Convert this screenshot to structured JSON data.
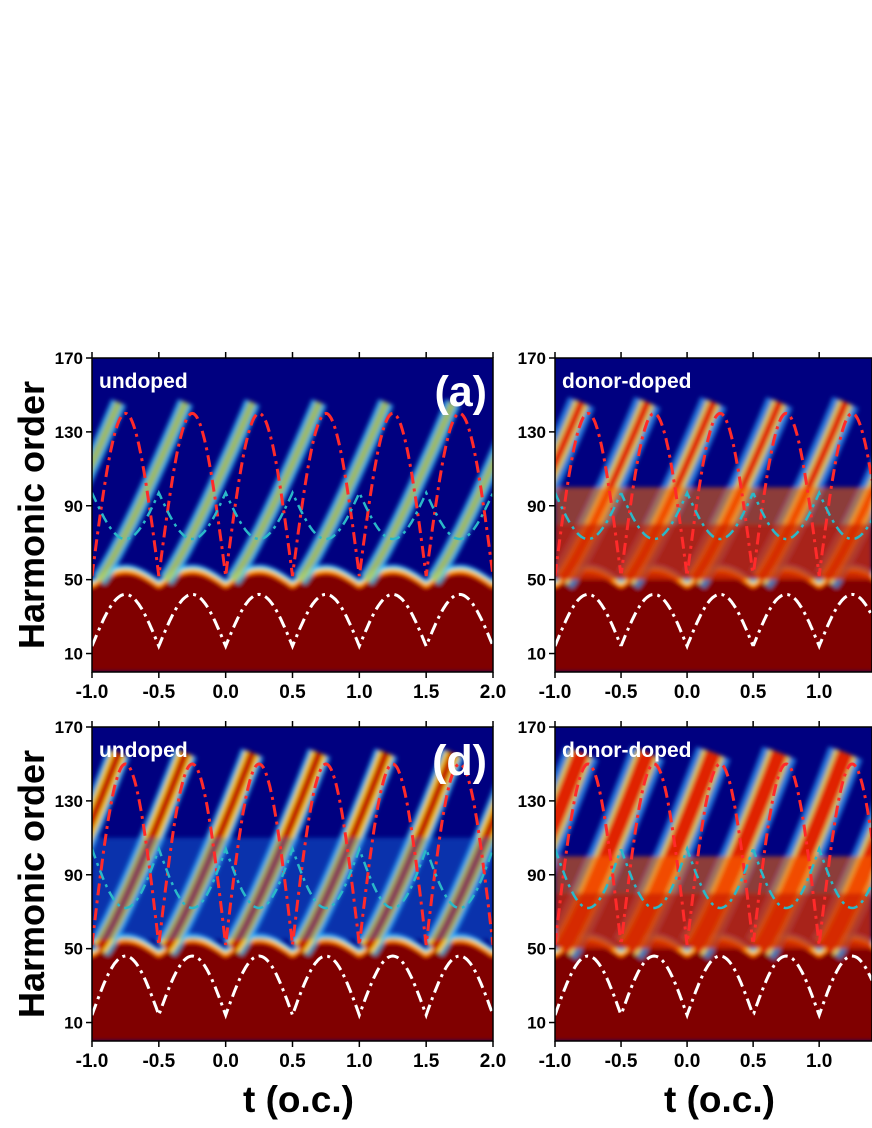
{
  "figure": {
    "ylabel": "Harmonic order",
    "xlabel": "t (o.c.)"
  },
  "colors": {
    "background_low": "#000080",
    "high": "#800000",
    "cutoff_curve": "#ff2a2a",
    "mid_curve": "#2ab8c8",
    "orange_curve": "#f0a020",
    "low_curve": "#ffffff"
  },
  "chart_data": [
    {
      "type": "heatmap",
      "panel_tag": "(a)",
      "inset_label": "undoped",
      "ylabel": "Harmonic order",
      "xlabel": "",
      "xlim": [
        -1.0,
        2.0
      ],
      "ylim": [
        0,
        170
      ],
      "xticks": [
        "-1.0",
        "-0.5",
        "0.0",
        "0.5",
        "1.0",
        "1.5",
        "2.0"
      ],
      "yticks": [
        "10",
        "50",
        "90",
        "130",
        "170"
      ],
      "cutoff_max": 140,
      "mid_curve_max": 97,
      "low_curve_max": 42,
      "colormap": "jet"
    },
    {
      "type": "heatmap",
      "panel_tag": "",
      "inset_label": "donor-doped",
      "ylabel": "",
      "xlabel": "",
      "xlim": [
        -1.0,
        1.4
      ],
      "ylim": [
        0,
        170
      ],
      "xticks": [
        "-1.0",
        "-0.5",
        "0.0",
        "0.5",
        "1.0"
      ],
      "yticks": [
        "10",
        "50",
        "90",
        "130",
        "170"
      ],
      "cutoff_max": 140,
      "mid_curve_max": 97,
      "low_curve_max": 42,
      "colormap": "jet"
    },
    {
      "type": "heatmap",
      "panel_tag": "(d)",
      "inset_label": "undoped",
      "ylabel": "Harmonic order",
      "xlabel": "t (o.c.)",
      "xlim": [
        -1.0,
        2.0
      ],
      "ylim": [
        0,
        170
      ],
      "xticks": [
        "-1.0",
        "-0.5",
        "0.0",
        "0.5",
        "1.0",
        "1.5",
        "2.0"
      ],
      "yticks": [
        "10",
        "50",
        "90",
        "130",
        "170"
      ],
      "cutoff_max": 150,
      "mid_curve_max": 104,
      "low_curve_max": 46,
      "colormap": "jet"
    },
    {
      "type": "heatmap",
      "panel_tag": "",
      "inset_label": "donor-doped",
      "ylabel": "",
      "xlabel": "t (o.c.)",
      "xlim": [
        -1.0,
        1.4
      ],
      "ylim": [
        0,
        170
      ],
      "xticks": [
        "-1.0",
        "-0.5",
        "0.0",
        "0.5",
        "1.0"
      ],
      "yticks": [
        "10",
        "50",
        "90",
        "130",
        "170"
      ],
      "cutoff_max": 150,
      "mid_curve_max": 104,
      "low_curve_max": 46,
      "colormap": "jet"
    }
  ]
}
